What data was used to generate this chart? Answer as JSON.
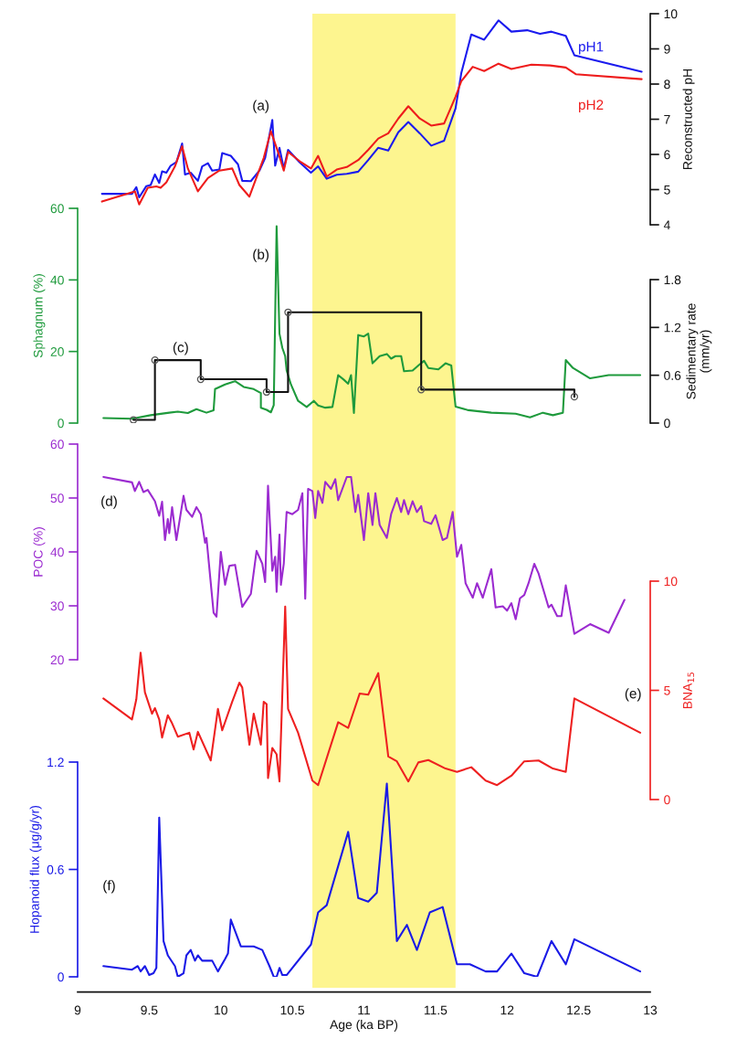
{
  "chart_data": [
    {
      "type": "line",
      "y2label": "Reconstructed pH",
      "y2lim": [
        4,
        10
      ],
      "y2ticks": [
        4,
        5,
        6,
        7,
        8,
        9,
        10
      ],
      "xlim": [
        9,
        13
      ],
      "tick_labels": "y",
      "annotations": [
        "(a)"
      ],
      "series": [
        {
          "name": "pH1",
          "color": "#1a1aee",
          "axis": "y2",
          "x": [
            9.17,
            9.38,
            9.41,
            9.43,
            9.48,
            9.51,
            9.54,
            9.57,
            9.59,
            9.62,
            9.65,
            9.69,
            9.73,
            9.75,
            9.79,
            9.84,
            9.87,
            9.91,
            9.94,
            9.99,
            10.01,
            10.07,
            10.12,
            10.15,
            10.21,
            10.27,
            10.31,
            10.36,
            10.38,
            10.41,
            10.44,
            10.47,
            10.55,
            10.63,
            10.68,
            10.74,
            10.81,
            10.88,
            10.96,
            11.03,
            11.1,
            11.17,
            11.24,
            11.31,
            11.39,
            11.47,
            11.56,
            11.64,
            11.68,
            11.75,
            11.84,
            11.94,
            12.03,
            12.14,
            12.23,
            12.31,
            12.41,
            12.47,
            12.94
          ],
          "values": [
            4.88,
            4.88,
            5.07,
            4.78,
            5.1,
            5.13,
            5.43,
            5.19,
            5.52,
            5.48,
            5.68,
            5.78,
            6.31,
            5.43,
            5.48,
            5.25,
            5.66,
            5.75,
            5.54,
            5.57,
            6.04,
            5.96,
            5.72,
            5.25,
            5.24,
            5.54,
            5.9,
            6.98,
            5.68,
            6.19,
            5.6,
            6.13,
            5.78,
            5.48,
            5.66,
            5.31,
            5.42,
            5.45,
            5.51,
            5.84,
            6.19,
            6.11,
            6.63,
            6.92,
            6.6,
            6.25,
            6.39,
            7.31,
            8.31,
            9.41,
            9.26,
            9.81,
            9.49,
            9.53,
            9.43,
            9.49,
            9.37,
            8.82,
            8.35
          ]
        },
        {
          "name": "pH2",
          "color": "#ee1c1c",
          "axis": "y2",
          "x": [
            9.17,
            9.4,
            9.43,
            9.49,
            9.55,
            9.58,
            9.62,
            9.68,
            9.73,
            9.77,
            9.84,
            9.91,
            9.99,
            10.08,
            10.13,
            10.2,
            10.3,
            10.35,
            10.4,
            10.44,
            10.47,
            10.56,
            10.63,
            10.68,
            10.74,
            10.81,
            10.88,
            10.96,
            11.03,
            11.1,
            11.17,
            11.24,
            11.31,
            11.39,
            11.47,
            11.56,
            11.64,
            11.68,
            11.76,
            11.84,
            11.94,
            12.03,
            12.17,
            12.3,
            12.41,
            12.48,
            12.94
          ],
          "values": [
            4.66,
            4.95,
            4.58,
            5.05,
            5.09,
            5.05,
            5.21,
            5.66,
            6.23,
            5.6,
            4.95,
            5.33,
            5.54,
            5.6,
            5.13,
            4.8,
            5.9,
            6.66,
            6.07,
            5.54,
            6.07,
            5.78,
            5.6,
            5.96,
            5.37,
            5.57,
            5.64,
            5.84,
            6.13,
            6.45,
            6.6,
            7.02,
            7.37,
            7.02,
            6.82,
            6.88,
            7.64,
            8.08,
            8.49,
            8.37,
            8.58,
            8.43,
            8.55,
            8.53,
            8.47,
            8.28,
            8.14
          ]
        }
      ]
    },
    {
      "type": "line",
      "ylabel": "Sphagnum (%)",
      "ylim": [
        0,
        60
      ],
      "yticks": [
        0,
        20,
        40,
        60
      ],
      "xlim": [
        9,
        13
      ],
      "tick_labels": "y",
      "annotations": [
        "(b)"
      ],
      "series": [
        {
          "color": "#1e9a3c",
          "x": [
            9.18,
            9.38,
            9.51,
            9.64,
            9.7,
            9.77,
            9.83,
            9.9,
            9.95,
            9.96,
            10.03,
            10.1,
            10.16,
            10.23,
            10.28,
            10.28,
            10.32,
            10.35,
            10.37,
            10.39,
            10.41,
            10.43,
            10.45,
            10.46,
            10.49,
            10.54,
            10.6,
            10.65,
            10.68,
            10.73,
            10.78,
            10.82,
            10.86,
            10.89,
            10.91,
            10.93,
            10.96,
            11.0,
            11.03,
            11.06,
            11.11,
            11.16,
            11.19,
            11.22,
            11.26,
            11.28,
            11.34,
            11.38,
            11.42,
            11.45,
            11.52,
            11.57,
            11.61,
            11.64,
            11.73,
            11.89,
            12.06,
            12.16,
            12.25,
            12.32,
            12.39,
            12.41,
            12.46,
            12.58,
            12.71,
            12.93
          ],
          "values": [
            1.4,
            1.2,
            2.2,
            2.9,
            3.2,
            2.8,
            3.9,
            2.9,
            3.6,
            9.5,
            10.8,
            11.7,
            10.1,
            9.5,
            8.4,
            4.3,
            3.7,
            3.0,
            5.0,
            55,
            25,
            21,
            18.7,
            14.7,
            10.8,
            6.2,
            4.5,
            6.2,
            4.9,
            4.3,
            4.5,
            13.4,
            12.1,
            11,
            13.4,
            2.8,
            24.6,
            24.2,
            25,
            16.7,
            18.7,
            19.3,
            18,
            18.7,
            18.7,
            14.5,
            14.7,
            16.1,
            17.4,
            15.4,
            15,
            16.7,
            16.1,
            4.6,
            3.6,
            2.9,
            2.6,
            1.6,
            2.9,
            2.2,
            2.9,
            17.6,
            15.4,
            12.5,
            13.4,
            13.4
          ]
        }
      ]
    },
    {
      "type": "step",
      "y2label": "Sedimentary rate\n(mm/yr)",
      "y2lim": [
        0,
        1.8
      ],
      "y2ticks": [
        0,
        0.6,
        1.2,
        1.8
      ],
      "xlim": [
        9,
        13
      ],
      "tick_labels": "y",
      "marker": "circle",
      "annotations": [
        "(c)"
      ],
      "series": [
        {
          "color": "#111111",
          "axis": "y2",
          "x": [
            9.39,
            9.54,
            9.86,
            10.32,
            10.47,
            11.4,
            12.47
          ],
          "values": [
            0.04,
            0.79,
            0.55,
            0.39,
            1.39,
            0.42,
            0.33
          ]
        }
      ]
    },
    {
      "type": "line",
      "ylabel": "POC (%)",
      "ylim": [
        20,
        60
      ],
      "yticks": [
        20,
        30,
        40,
        50,
        60
      ],
      "xlim": [
        9,
        13
      ],
      "tick_labels": "y",
      "annotations": [
        "(d)"
      ],
      "series": [
        {
          "color": "#9b2bd0",
          "x": [
            9.18,
            9.38,
            9.4,
            9.43,
            9.46,
            9.49,
            9.54,
            9.57,
            9.59,
            9.61,
            9.63,
            9.64,
            9.66,
            9.69,
            9.74,
            9.76,
            9.8,
            9.83,
            9.86,
            9.89,
            9.9,
            9.95,
            9.97,
            10.0,
            10.03,
            10.06,
            10.1,
            10.15,
            10.21,
            10.25,
            10.29,
            10.31,
            10.33,
            10.36,
            10.38,
            10.39,
            10.41,
            10.42,
            10.44,
            10.46,
            10.5,
            10.54,
            10.57,
            10.59,
            10.61,
            10.64,
            10.66,
            10.68,
            10.71,
            10.73,
            10.77,
            10.8,
            10.82,
            10.88,
            10.91,
            10.94,
            10.96,
            11.0,
            11.03,
            11.06,
            11.08,
            11.11,
            11.16,
            11.19,
            11.23,
            11.26,
            11.28,
            11.31,
            11.34,
            11.37,
            11.4,
            11.42,
            11.47,
            11.5,
            11.55,
            11.58,
            11.62,
            11.65,
            11.68,
            11.71,
            11.76,
            11.79,
            11.83,
            11.85,
            11.89,
            11.92,
            11.97,
            12.0,
            12.03,
            12.06,
            12.09,
            12.12,
            12.15,
            12.19,
            12.22,
            12.29,
            12.31,
            12.35,
            12.38,
            12.41,
            12.47,
            12.58,
            12.71,
            12.82
          ],
          "values": [
            53.9,
            52.9,
            51.3,
            53,
            51.1,
            51.5,
            49.4,
            46.7,
            49.3,
            42.2,
            46.1,
            43.5,
            48.3,
            42.2,
            50.4,
            47.8,
            46.5,
            48.3,
            47,
            41.7,
            42.6,
            28.7,
            28,
            40,
            33.9,
            37.4,
            37.6,
            29.8,
            32.2,
            40.2,
            37.8,
            34.4,
            52.3,
            36.5,
            39.1,
            32.6,
            43.2,
            33.9,
            37.8,
            47.4,
            47,
            47.8,
            50.9,
            31.3,
            51.7,
            51.3,
            46.3,
            51.3,
            49.1,
            53,
            51.7,
            53.5,
            49.6,
            53.9,
            53.9,
            47.4,
            50.6,
            42.2,
            50.9,
            45,
            50.9,
            45,
            42.6,
            47,
            50,
            47.4,
            49.6,
            47,
            49.4,
            47.4,
            48.5,
            45.7,
            45.2,
            46.8,
            42.2,
            42.6,
            47.4,
            39.1,
            41.3,
            34.2,
            31.5,
            34.2,
            31.5,
            33.3,
            36.8,
            29.7,
            29.9,
            29.1,
            30.5,
            27.5,
            31.4,
            32,
            34.2,
            37.8,
            36,
            29.7,
            30.2,
            28.1,
            28.1,
            33.8,
            24.8,
            26.6,
            25,
            31.1
          ]
        }
      ]
    },
    {
      "type": "line",
      "y2label": "BNA$_{15}$",
      "y2lim": [
        0,
        10
      ],
      "y2ticks": [
        0,
        5,
        10
      ],
      "xlim": [
        9,
        13
      ],
      "tick_labels": "y",
      "annotations": [
        "(e)"
      ],
      "series": [
        {
          "color": "#ee2020",
          "axis": "y2",
          "x": [
            9.18,
            9.38,
            9.41,
            9.44,
            9.47,
            9.52,
            9.54,
            9.57,
            9.59,
            9.63,
            9.66,
            9.7,
            9.78,
            9.81,
            9.84,
            9.93,
            9.98,
            10.01,
            10.08,
            10.13,
            10.15,
            10.2,
            10.23,
            10.28,
            10.3,
            10.32,
            10.33,
            10.36,
            10.39,
            10.41,
            10.45,
            10.47,
            10.54,
            10.64,
            10.68,
            10.82,
            10.89,
            10.97,
            11.03,
            11.1,
            11.17,
            11.23,
            11.31,
            11.38,
            11.45,
            11.57,
            11.65,
            11.75,
            11.85,
            11.93,
            12.03,
            12.12,
            12.22,
            12.32,
            12.41,
            12.47,
            12.93
          ],
          "values": [
            4.63,
            3.67,
            4.59,
            6.72,
            4.91,
            3.93,
            4.19,
            3.67,
            2.84,
            3.86,
            3.49,
            2.88,
            3.06,
            2.29,
            3.1,
            1.79,
            4.15,
            3.17,
            4.48,
            5.35,
            5.13,
            2.51,
            3.93,
            2.51,
            4.48,
            4.37,
            0.98,
            2.36,
            2.07,
            0.83,
            8.84,
            4.15,
            3.06,
            0.87,
            0.66,
            3.54,
            3.28,
            4.85,
            4.8,
            5.79,
            1.97,
            1.75,
            0.83,
            1.7,
            1.81,
            1.42,
            1.27,
            1.48,
            0.87,
            0.66,
            1.09,
            1.75,
            1.79,
            1.42,
            1.27,
            4.63,
            3.06
          ]
        }
      ]
    },
    {
      "type": "line",
      "ylabel": "Hopanoid flux (μg/g/yr)",
      "xlabel": "Age (ka BP)",
      "ylim": [
        0,
        1.2
      ],
      "yticks": [
        0,
        0.6,
        1.2
      ],
      "xlim": [
        9,
        13
      ],
      "xticks": [
        9,
        9.5,
        10,
        10.5,
        11,
        11.5,
        12,
        12.5,
        13
      ],
      "annotations": [
        "(f)"
      ],
      "bands": [
        {
          "axis": "x",
          "from": 10.64,
          "to": 11.64,
          "color": "#fdf58f"
        }
      ],
      "series": [
        {
          "color": "#1a1ae6",
          "x": [
            9.18,
            9.38,
            9.42,
            9.44,
            9.47,
            9.5,
            9.53,
            9.55,
            9.57,
            9.6,
            9.63,
            9.68,
            9.7,
            9.74,
            9.76,
            9.79,
            9.82,
            9.84,
            9.87,
            9.94,
            9.98,
            10.03,
            10.05,
            10.07,
            10.14,
            10.23,
            10.29,
            10.34,
            10.37,
            10.39,
            10.41,
            10.43,
            10.46,
            10.63,
            10.68,
            10.74,
            10.89,
            10.96,
            11.03,
            11.09,
            11.16,
            11.23,
            11.3,
            11.37,
            11.46,
            11.55,
            11.65,
            11.74,
            11.85,
            11.93,
            12.03,
            12.12,
            12.21,
            12.31,
            12.41,
            12.47,
            12.93
          ],
          "values": [
            0.06,
            0.04,
            0.06,
            0.03,
            0.06,
            0.01,
            0.02,
            0.05,
            0.89,
            0.2,
            0.12,
            0.06,
            0.0,
            0.02,
            0.12,
            0.15,
            0.09,
            0.12,
            0.09,
            0.09,
            0.03,
            0.1,
            0.13,
            0.32,
            0.17,
            0.17,
            0.15,
            0.06,
            0.0,
            0.0,
            0.05,
            0.01,
            0.01,
            0.18,
            0.36,
            0.4,
            0.81,
            0.44,
            0.42,
            0.47,
            1.08,
            0.2,
            0.29,
            0.15,
            0.36,
            0.39,
            0.07,
            0.07,
            0.03,
            0.03,
            0.13,
            0.02,
            0.0,
            0.2,
            0.07,
            0.21,
            0.03
          ]
        }
      ]
    }
  ]
}
